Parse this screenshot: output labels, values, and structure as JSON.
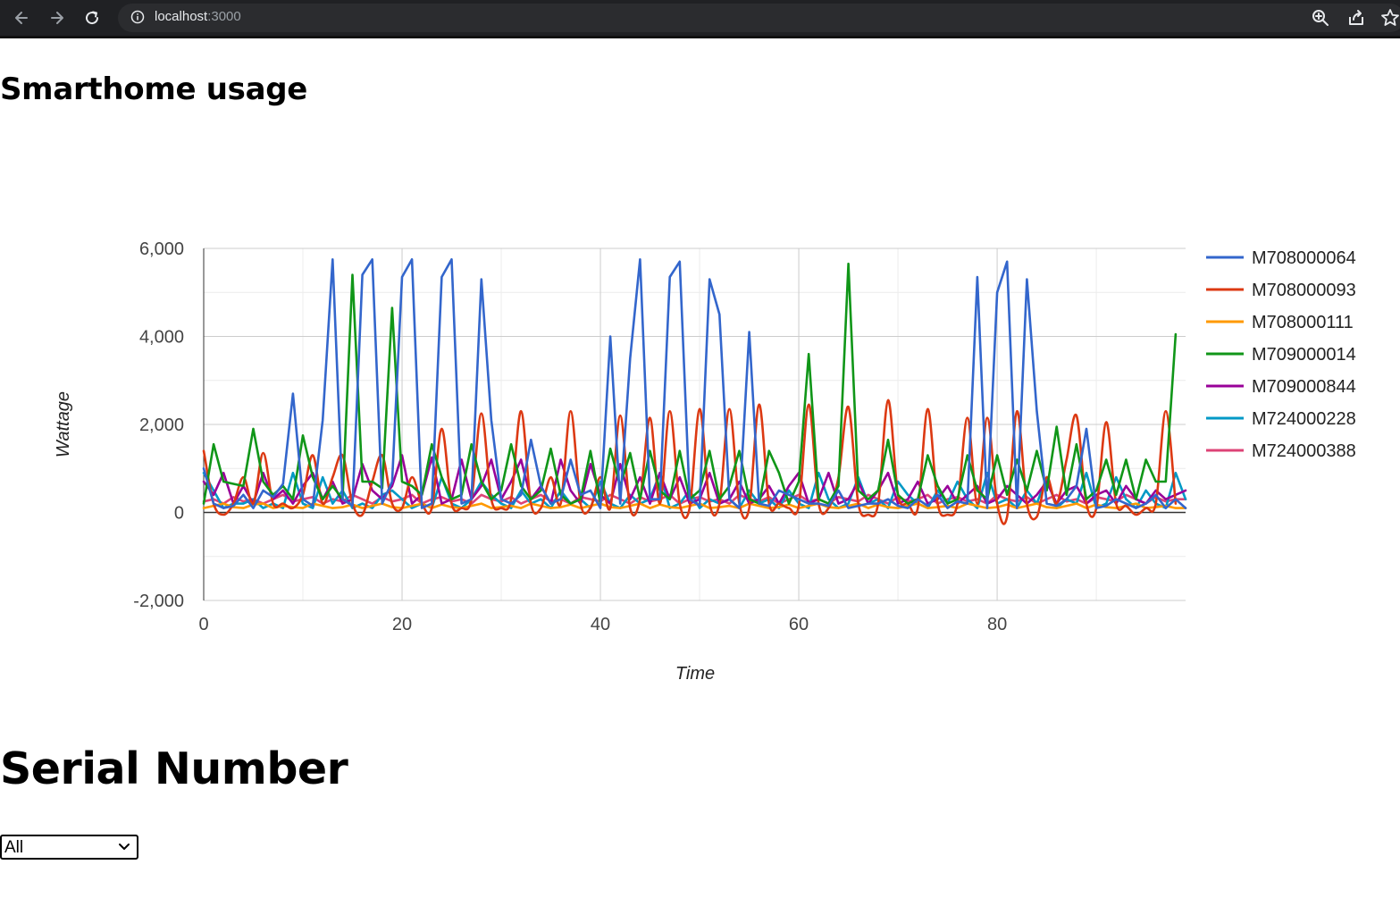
{
  "browser": {
    "url_host": "localhost",
    "url_port": ":3000"
  },
  "page": {
    "title": "Smarthome usage",
    "serial_heading": "Serial Number",
    "serial_select": {
      "value": "All",
      "options": [
        "All"
      ]
    }
  },
  "chart_data": {
    "type": "line",
    "title": "",
    "xlabel": "Time",
    "ylabel": "Wattage",
    "xlim": [
      0,
      99
    ],
    "ylim": [
      -2000,
      6000
    ],
    "x_ticks": [
      0,
      20,
      40,
      60,
      80
    ],
    "y_ticks": [
      -2000,
      0,
      2000,
      4000,
      6000
    ],
    "x_tick_labels": [
      "0",
      "20",
      "40",
      "60",
      "80"
    ],
    "y_tick_labels": [
      "-2,000",
      "0",
      "2,000",
      "4,000",
      "6,000"
    ],
    "grid": true,
    "legend_position": "right",
    "series": [
      {
        "name": "M708000064",
        "color": "#3366cc",
        "curve": "straight",
        "values": [
          1000,
          200,
          100,
          150,
          400,
          100,
          500,
          350,
          650,
          2700,
          300,
          150,
          2100,
          5750,
          300,
          150,
          5400,
          5750,
          200,
          700,
          5350,
          5750,
          100,
          200,
          5350,
          5750,
          200,
          300,
          5300,
          2100,
          300,
          200,
          400,
          1650,
          600,
          200,
          300,
          1200,
          400,
          500,
          100,
          4000,
          200,
          3500,
          5750,
          300,
          300,
          5350,
          5700,
          300,
          150,
          5300,
          4500,
          300,
          100,
          4100,
          200,
          150,
          500,
          400,
          300,
          200,
          200,
          150,
          500,
          100,
          150,
          200,
          200,
          300,
          150,
          100,
          300,
          150,
          400,
          100,
          250,
          200,
          5350,
          100,
          5000,
          5700,
          100,
          5300,
          2300,
          200,
          150,
          300,
          600,
          1900,
          100,
          150,
          300,
          200,
          100,
          200,
          400,
          100,
          300,
          100
        ]
      },
      {
        "name": "M708000093",
        "color": "#dc3912",
        "curve": "smooth",
        "values": [
          1400,
          200,
          -50,
          200,
          800,
          200,
          1350,
          200,
          200,
          100,
          400,
          1300,
          200,
          800,
          1300,
          200,
          -50,
          700,
          1300,
          200,
          100,
          800,
          200,
          100,
          1900,
          200,
          100,
          300,
          2250,
          300,
          100,
          300,
          2300,
          200,
          100,
          800,
          200,
          2300,
          200,
          100,
          800,
          100,
          2200,
          100,
          300,
          2150,
          200,
          2300,
          200,
          100,
          2350,
          200,
          200,
          2350,
          200,
          100,
          2450,
          200,
          200,
          100,
          150,
          2450,
          200,
          100,
          800,
          2400,
          200,
          -50,
          200,
          2550,
          400,
          200,
          100,
          2350,
          200,
          -50,
          200,
          2150,
          200,
          2150,
          200,
          -100,
          2300,
          200,
          -100,
          800,
          200,
          1200,
          2200,
          200,
          100,
          2050,
          200,
          150,
          -50,
          100,
          200,
          2300,
          200
        ]
      },
      {
        "name": "M708000111",
        "color": "#ff9900",
        "curve": "straight",
        "values": [
          100,
          150,
          200,
          120,
          100,
          180,
          200,
          100,
          150,
          120,
          100,
          200,
          150,
          100,
          120,
          180,
          100,
          150,
          200,
          120,
          100,
          150,
          200,
          100,
          180,
          120,
          100,
          150,
          200,
          100,
          120,
          150,
          100,
          200,
          150,
          100,
          120,
          180,
          100,
          150,
          200,
          120,
          100,
          150,
          200,
          100,
          180,
          120,
          100,
          150,
          200,
          100,
          120,
          150,
          100,
          200,
          150,
          100,
          120,
          180,
          100,
          150,
          200,
          120,
          100,
          150,
          200,
          100,
          180,
          120,
          100,
          150,
          200,
          100,
          120,
          150,
          100,
          200,
          150,
          100,
          120,
          180,
          100,
          150,
          200,
          120,
          100,
          150,
          200,
          100,
          180,
          120,
          100,
          150,
          200,
          100,
          120,
          150,
          100,
          100
        ]
      },
      {
        "name": "M709000014",
        "color": "#109618",
        "curve": "straight",
        "values": [
          200,
          1550,
          700,
          650,
          600,
          1900,
          700,
          400,
          600,
          300,
          1750,
          800,
          300,
          600,
          300,
          5400,
          700,
          700,
          550,
          4650,
          700,
          600,
          400,
          1550,
          800,
          300,
          400,
          1550,
          700,
          300,
          500,
          1550,
          600,
          300,
          500,
          1450,
          400,
          200,
          300,
          1400,
          200,
          1450,
          600,
          1350,
          300,
          1400,
          500,
          300,
          1400,
          300,
          500,
          1400,
          300,
          600,
          1400,
          300,
          200,
          1400,
          900,
          200,
          700,
          3600,
          300,
          200,
          600,
          5650,
          500,
          300,
          500,
          1650,
          400,
          200,
          300,
          1300,
          600,
          200,
          300,
          1300,
          500,
          300,
          1300,
          400,
          1200,
          500,
          1400,
          500,
          1950,
          400,
          1550,
          300,
          500,
          1200,
          400,
          1200,
          300,
          1200,
          700,
          700,
          4050
        ]
      },
      {
        "name": "M709000844",
        "color": "#990099",
        "curve": "straight",
        "values": [
          700,
          400,
          900,
          200,
          600,
          200,
          900,
          300,
          500,
          200,
          600,
          900,
          300,
          700,
          200,
          300,
          1100,
          500,
          300,
          600,
          1300,
          200,
          400,
          1250,
          200,
          300,
          1200,
          300,
          600,
          1200,
          300,
          700,
          1200,
          300,
          600,
          200,
          1200,
          500,
          200,
          1100,
          400,
          200,
          1100,
          300,
          800,
          200,
          900,
          300,
          800,
          200,
          300,
          900,
          200,
          300,
          700,
          200,
          300,
          600,
          200,
          600,
          900,
          200,
          300,
          900,
          200,
          300,
          700,
          200,
          500,
          900,
          200,
          300,
          700,
          200,
          300,
          600,
          200,
          400,
          600,
          200,
          300,
          600,
          400,
          200,
          400,
          700,
          200,
          500,
          600,
          200,
          400,
          500,
          200,
          600,
          300,
          200,
          500,
          300,
          400,
          500
        ]
      },
      {
        "name": "M724000228",
        "color": "#0099c6",
        "curve": "straight",
        "values": [
          900,
          500,
          100,
          200,
          200,
          300,
          100,
          200,
          100,
          900,
          200,
          100,
          800,
          200,
          500,
          100,
          200,
          100,
          400,
          500,
          300,
          100,
          200,
          100,
          800,
          200,
          100,
          300,
          700,
          400,
          200,
          100,
          500,
          200,
          300,
          100,
          500,
          200,
          300,
          100,
          700,
          200,
          100,
          400,
          200,
          300,
          900,
          100,
          200,
          500,
          100,
          300,
          200,
          300,
          100,
          500,
          200,
          300,
          100,
          500,
          200,
          100,
          900,
          300,
          100,
          200,
          800,
          200,
          300,
          100,
          700,
          400,
          200,
          100,
          500,
          200,
          700,
          300,
          100,
          900,
          200,
          300,
          100,
          500,
          200,
          800,
          100,
          300,
          200,
          900,
          100,
          200,
          800,
          300,
          100,
          500,
          200,
          100,
          900,
          300
        ]
      },
      {
        "name": "M724000388",
        "color": "#dd4477",
        "curve": "straight",
        "values": [
          250,
          300,
          200,
          350,
          250,
          300,
          200,
          300,
          400,
          250,
          300,
          350,
          200,
          300,
          250,
          400,
          300,
          200,
          350,
          250,
          300,
          400,
          200,
          300,
          350,
          250,
          300,
          200,
          400,
          300,
          250,
          350,
          200,
          300,
          400,
          250,
          300,
          200,
          350,
          300,
          250,
          400,
          300,
          200,
          350,
          250,
          300,
          400,
          200,
          300,
          350,
          250,
          300,
          200,
          400,
          300,
          250,
          350,
          200,
          300,
          400,
          250,
          300,
          200,
          350,
          300,
          250,
          400,
          300,
          200,
          350,
          250,
          300,
          400,
          200,
          300,
          350,
          250,
          300,
          200,
          400,
          300,
          250,
          350,
          200,
          300,
          400,
          250,
          300,
          200,
          350,
          300,
          250,
          400,
          300,
          200,
          350,
          250,
          300,
          300
        ]
      }
    ]
  }
}
